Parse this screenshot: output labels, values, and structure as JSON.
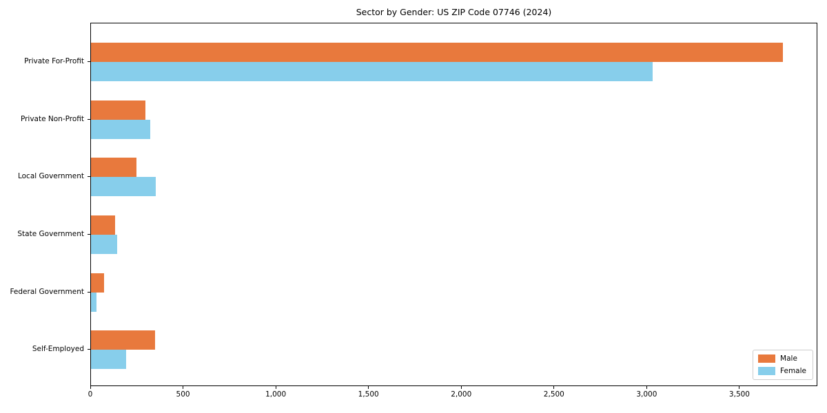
{
  "chart_data": {
    "type": "bar",
    "orientation": "horizontal",
    "title": "Sector by Gender: US ZIP Code 07746 (2024)",
    "categories": [
      "Private For-Profit",
      "Private Non-Profit",
      "Local Government",
      "State Government",
      "Federal Government",
      "Self-Employed"
    ],
    "series": [
      {
        "name": "Male",
        "color": "#e8793d",
        "values": [
          3730,
          295,
          245,
          130,
          70,
          345
        ]
      },
      {
        "name": "Female",
        "color": "#87ceeb",
        "values": [
          3030,
          320,
          350,
          140,
          30,
          190
        ]
      }
    ],
    "xlabel": "",
    "ylabel": "",
    "xlim": [
      0,
      3920
    ],
    "xticks": [
      0,
      500,
      1000,
      1500,
      2000,
      2500,
      3000,
      3500
    ],
    "xtick_labels": [
      "0",
      "500",
      "1,000",
      "1,500",
      "2,000",
      "2,500",
      "3,000",
      "3,500"
    ],
    "legend_position": "lower right",
    "grid": false,
    "background_color": "#ffffff",
    "axis_color": "#000000"
  }
}
